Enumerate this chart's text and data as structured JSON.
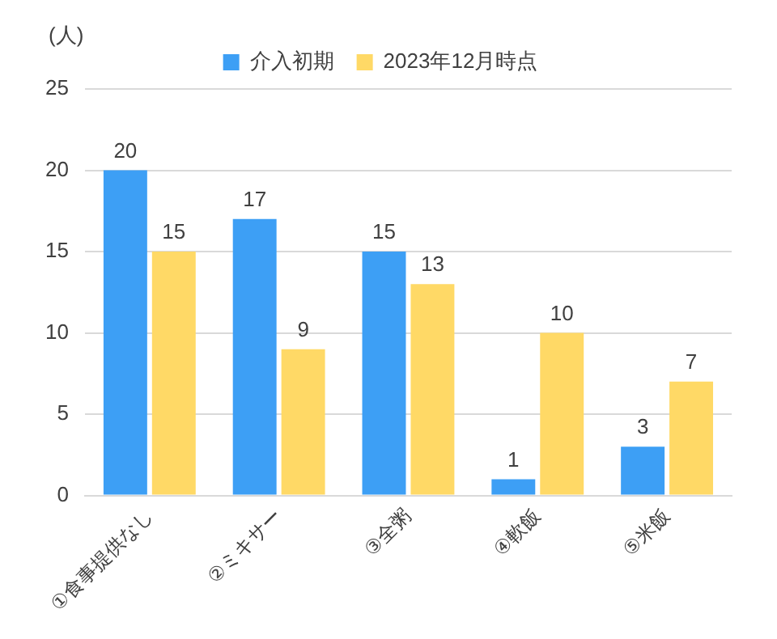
{
  "chart_data": {
    "type": "bar",
    "ylabel": "(人)",
    "categories": [
      "①食事提供なし",
      "②ミキサー",
      "③全粥",
      "④軟飯",
      "⑤米飯"
    ],
    "series": [
      {
        "name": "介入初期",
        "color": "#3d9ff5",
        "values": [
          20,
          17,
          15,
          1,
          3
        ]
      },
      {
        "name": "2023年12月時点",
        "color": "#ffd966",
        "values": [
          15,
          9,
          13,
          10,
          7
        ]
      }
    ],
    "ylim": [
      0,
      25
    ],
    "yticks": [
      0,
      5,
      10,
      15,
      20,
      25
    ],
    "grid": "y",
    "legend": "top",
    "data_labels": true
  }
}
